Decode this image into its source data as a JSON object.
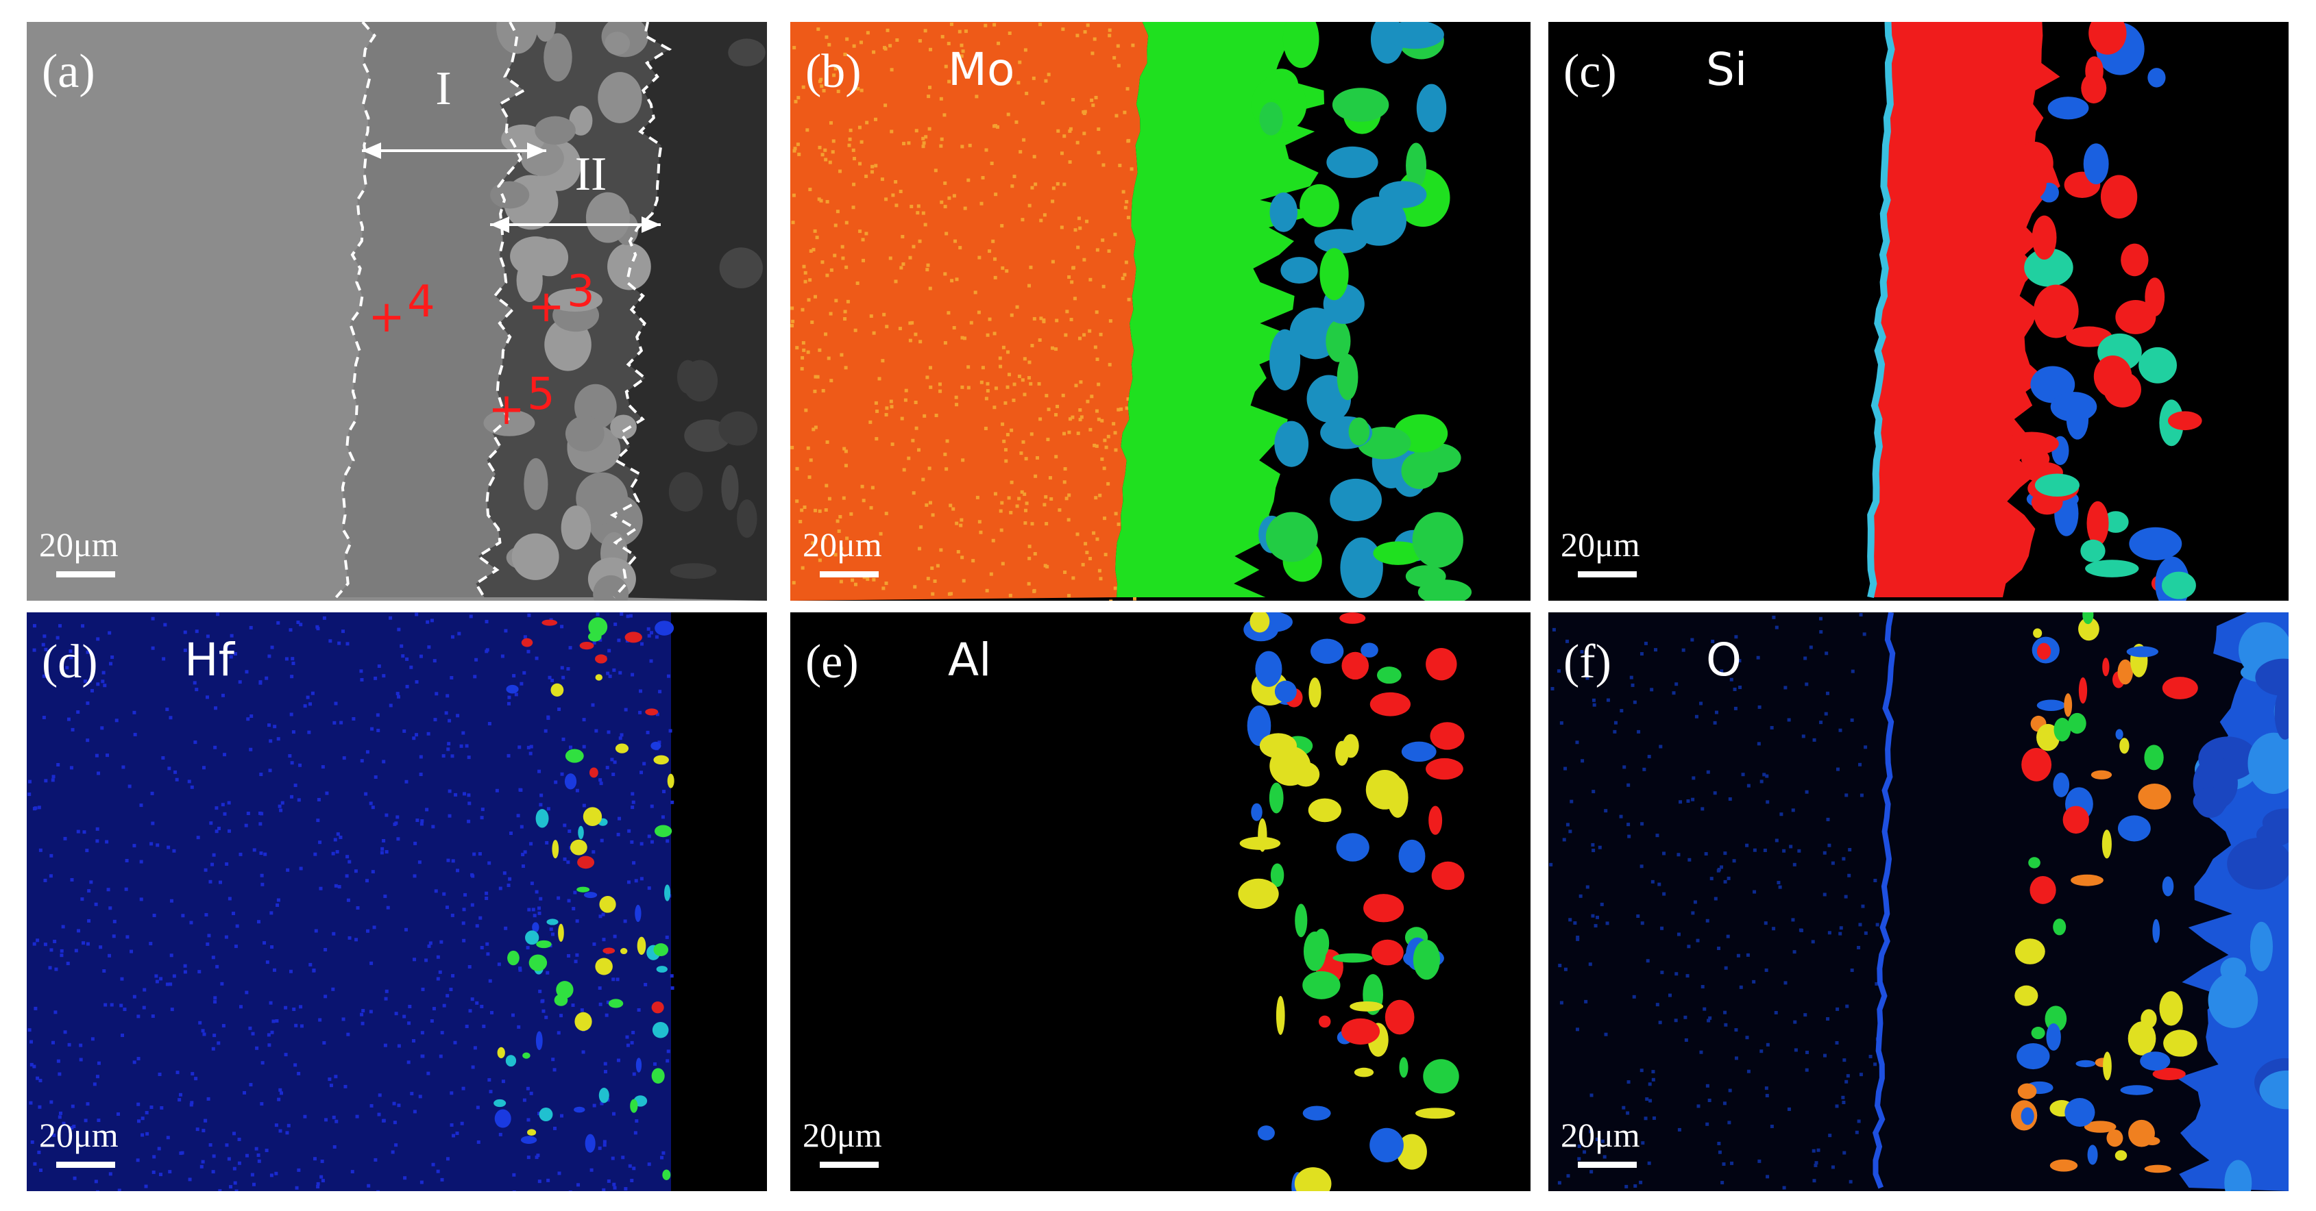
{
  "panels": [
    {
      "label": "(a)",
      "scale_bar": "20μm",
      "annotations": {
        "zone_1": "I",
        "zone_2": "II",
        "points": [
          "4",
          "3",
          "5"
        ]
      }
    },
    {
      "label": "(b)",
      "element": "Mo",
      "scale_bar": "20μm"
    },
    {
      "label": "(c)",
      "element": "Si",
      "scale_bar": "20μm"
    },
    {
      "label": "(d)",
      "element": "Hf",
      "scale_bar": "20μm"
    },
    {
      "label": "(e)",
      "element": "Al",
      "scale_bar": "20μm"
    },
    {
      "label": "(f)",
      "element": "O",
      "scale_bar": "20μm"
    }
  ]
}
